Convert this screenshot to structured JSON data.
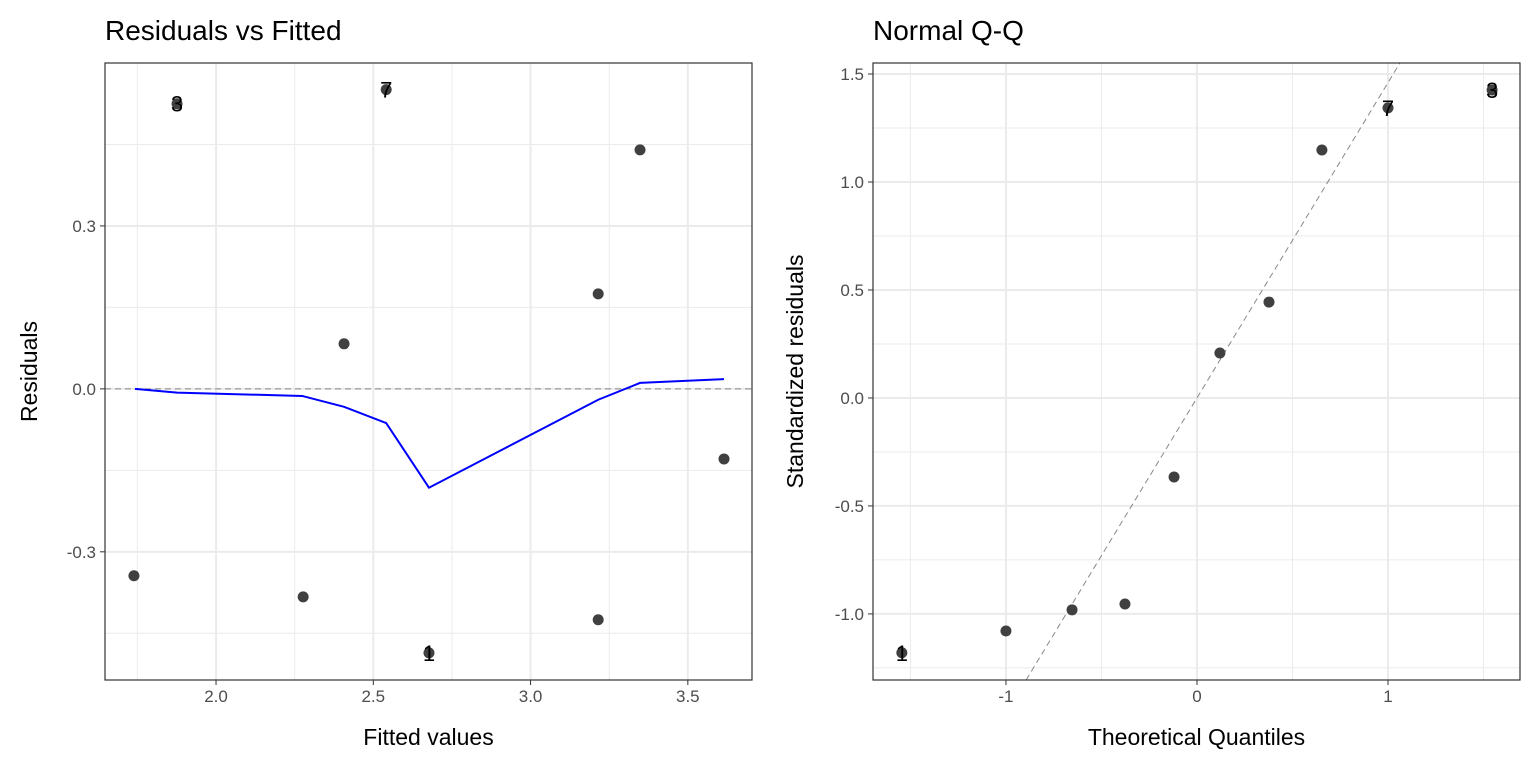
{
  "chart_data": [
    {
      "type": "scatter",
      "title": "Residuals vs Fitted",
      "xlabel": "Fitted values",
      "ylabel": "Residuals",
      "xlim": [
        1.647,
        3.704
      ],
      "ylim": [
        -0.536,
        0.6
      ],
      "xticks": [
        2.0,
        2.5,
        3.0,
        3.5
      ],
      "xtick_labels": [
        "2.0",
        "2.5",
        "3.0",
        "3.5"
      ],
      "yticks": [
        -0.3,
        0.0,
        0.3
      ],
      "ytick_labels": [
        "-0.3",
        "0.0",
        "0.3"
      ],
      "xminor": [
        1.75,
        2.25,
        2.75,
        3.25
      ],
      "yminor": [
        -0.45,
        -0.15,
        0.15,
        0.45
      ],
      "grid": true,
      "points": [
        {
          "x": 1.739,
          "y": -0.344
        },
        {
          "x": 1.876,
          "y": 0.525,
          "label": "3"
        },
        {
          "x": 2.277,
          "y": -0.383
        },
        {
          "x": 2.407,
          "y": 0.083
        },
        {
          "x": 2.541,
          "y": 0.551,
          "label": "7"
        },
        {
          "x": 2.677,
          "y": -0.486,
          "label": "1"
        },
        {
          "x": 3.215,
          "y": 0.175
        },
        {
          "x": 3.215,
          "y": -0.425
        },
        {
          "x": 3.348,
          "y": 0.44
        },
        {
          "x": 3.615,
          "y": -0.129
        }
      ],
      "smooth": {
        "color": "#0000ff",
        "x": [
          1.742,
          1.876,
          2.274,
          2.407,
          2.541,
          2.677,
          3.215,
          3.348,
          3.615
        ],
        "y": [
          0,
          -0.007,
          -0.013,
          -0.033,
          -0.063,
          -0.182,
          -0.02,
          0.011,
          0.018
        ]
      },
      "reference_line": {
        "type": "horizontal",
        "y": 0,
        "style": "dashed"
      }
    },
    {
      "type": "scatter",
      "title": "Normal Q-Q",
      "xlabel": "Theoretical Quantiles",
      "ylabel": "Standardized residuals",
      "xlim": [
        -1.696,
        1.691
      ],
      "ylim": [
        -1.306,
        1.551
      ],
      "xticks": [
        -1,
        0,
        1
      ],
      "xtick_labels": [
        "-1",
        "0",
        "1"
      ],
      "yticks": [
        -1.0,
        -0.5,
        0.0,
        0.5,
        1.0,
        1.5
      ],
      "ytick_labels": [
        "-1.0",
        "-0.5",
        "0.0",
        "0.5",
        "1.0",
        "1.5"
      ],
      "xminor": [
        -1.5,
        -0.5,
        0.5,
        1.5
      ],
      "yminor": [
        -1.25,
        -0.75,
        -0.25,
        0.25,
        0.75,
        1.25
      ],
      "grid": true,
      "points": [
        {
          "x": -1.545,
          "y": -1.18,
          "label": "1"
        },
        {
          "x": -1.0,
          "y": -1.079
        },
        {
          "x": -0.654,
          "y": -0.981
        },
        {
          "x": -0.377,
          "y": -0.954
        },
        {
          "x": -0.12,
          "y": -0.366
        },
        {
          "x": 0.12,
          "y": 0.208
        },
        {
          "x": 0.377,
          "y": 0.444
        },
        {
          "x": 0.654,
          "y": 1.148
        },
        {
          "x": 1.0,
          "y": 1.343,
          "label": "7"
        },
        {
          "x": 1.545,
          "y": 1.426,
          "label": "3"
        }
      ],
      "reference_line": {
        "type": "abline",
        "intercept": 0,
        "slope": 1.46,
        "style": "dashed"
      }
    }
  ],
  "colors": {
    "point": "#404040",
    "grid": "#ebebeb",
    "panel_border": "#333333",
    "reference": "#888888"
  }
}
